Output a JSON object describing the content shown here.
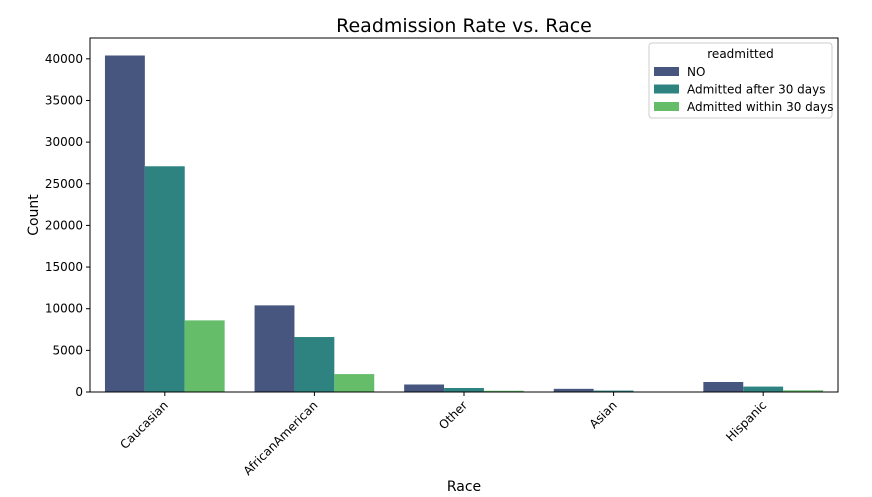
{
  "chart_data": {
    "type": "bar",
    "title": "Readmission Rate vs. Race",
    "xlabel": "Race",
    "ylabel": "Count",
    "categories": [
      "Caucasian",
      "AfricanAmerican",
      "Other",
      "Asian",
      "Hispanic"
    ],
    "series": [
      {
        "name": "NO",
        "color": "#46567f",
        "values": [
          40400,
          10400,
          900,
          380,
          1200
        ]
      },
      {
        "name": "Admitted after 30 days",
        "color": "#2e8380",
        "values": [
          27100,
          6600,
          480,
          170,
          650
        ]
      },
      {
        "name": "Admitted within 30 days",
        "color": "#65bd6a",
        "values": [
          8600,
          2150,
          150,
          60,
          200
        ]
      }
    ],
    "ylim": [
      0,
      42500
    ],
    "yticks": [
      0,
      5000,
      10000,
      15000,
      20000,
      25000,
      30000,
      35000,
      40000
    ],
    "grid": false,
    "legend": {
      "title": "readmitted",
      "placement": "top-right"
    }
  }
}
